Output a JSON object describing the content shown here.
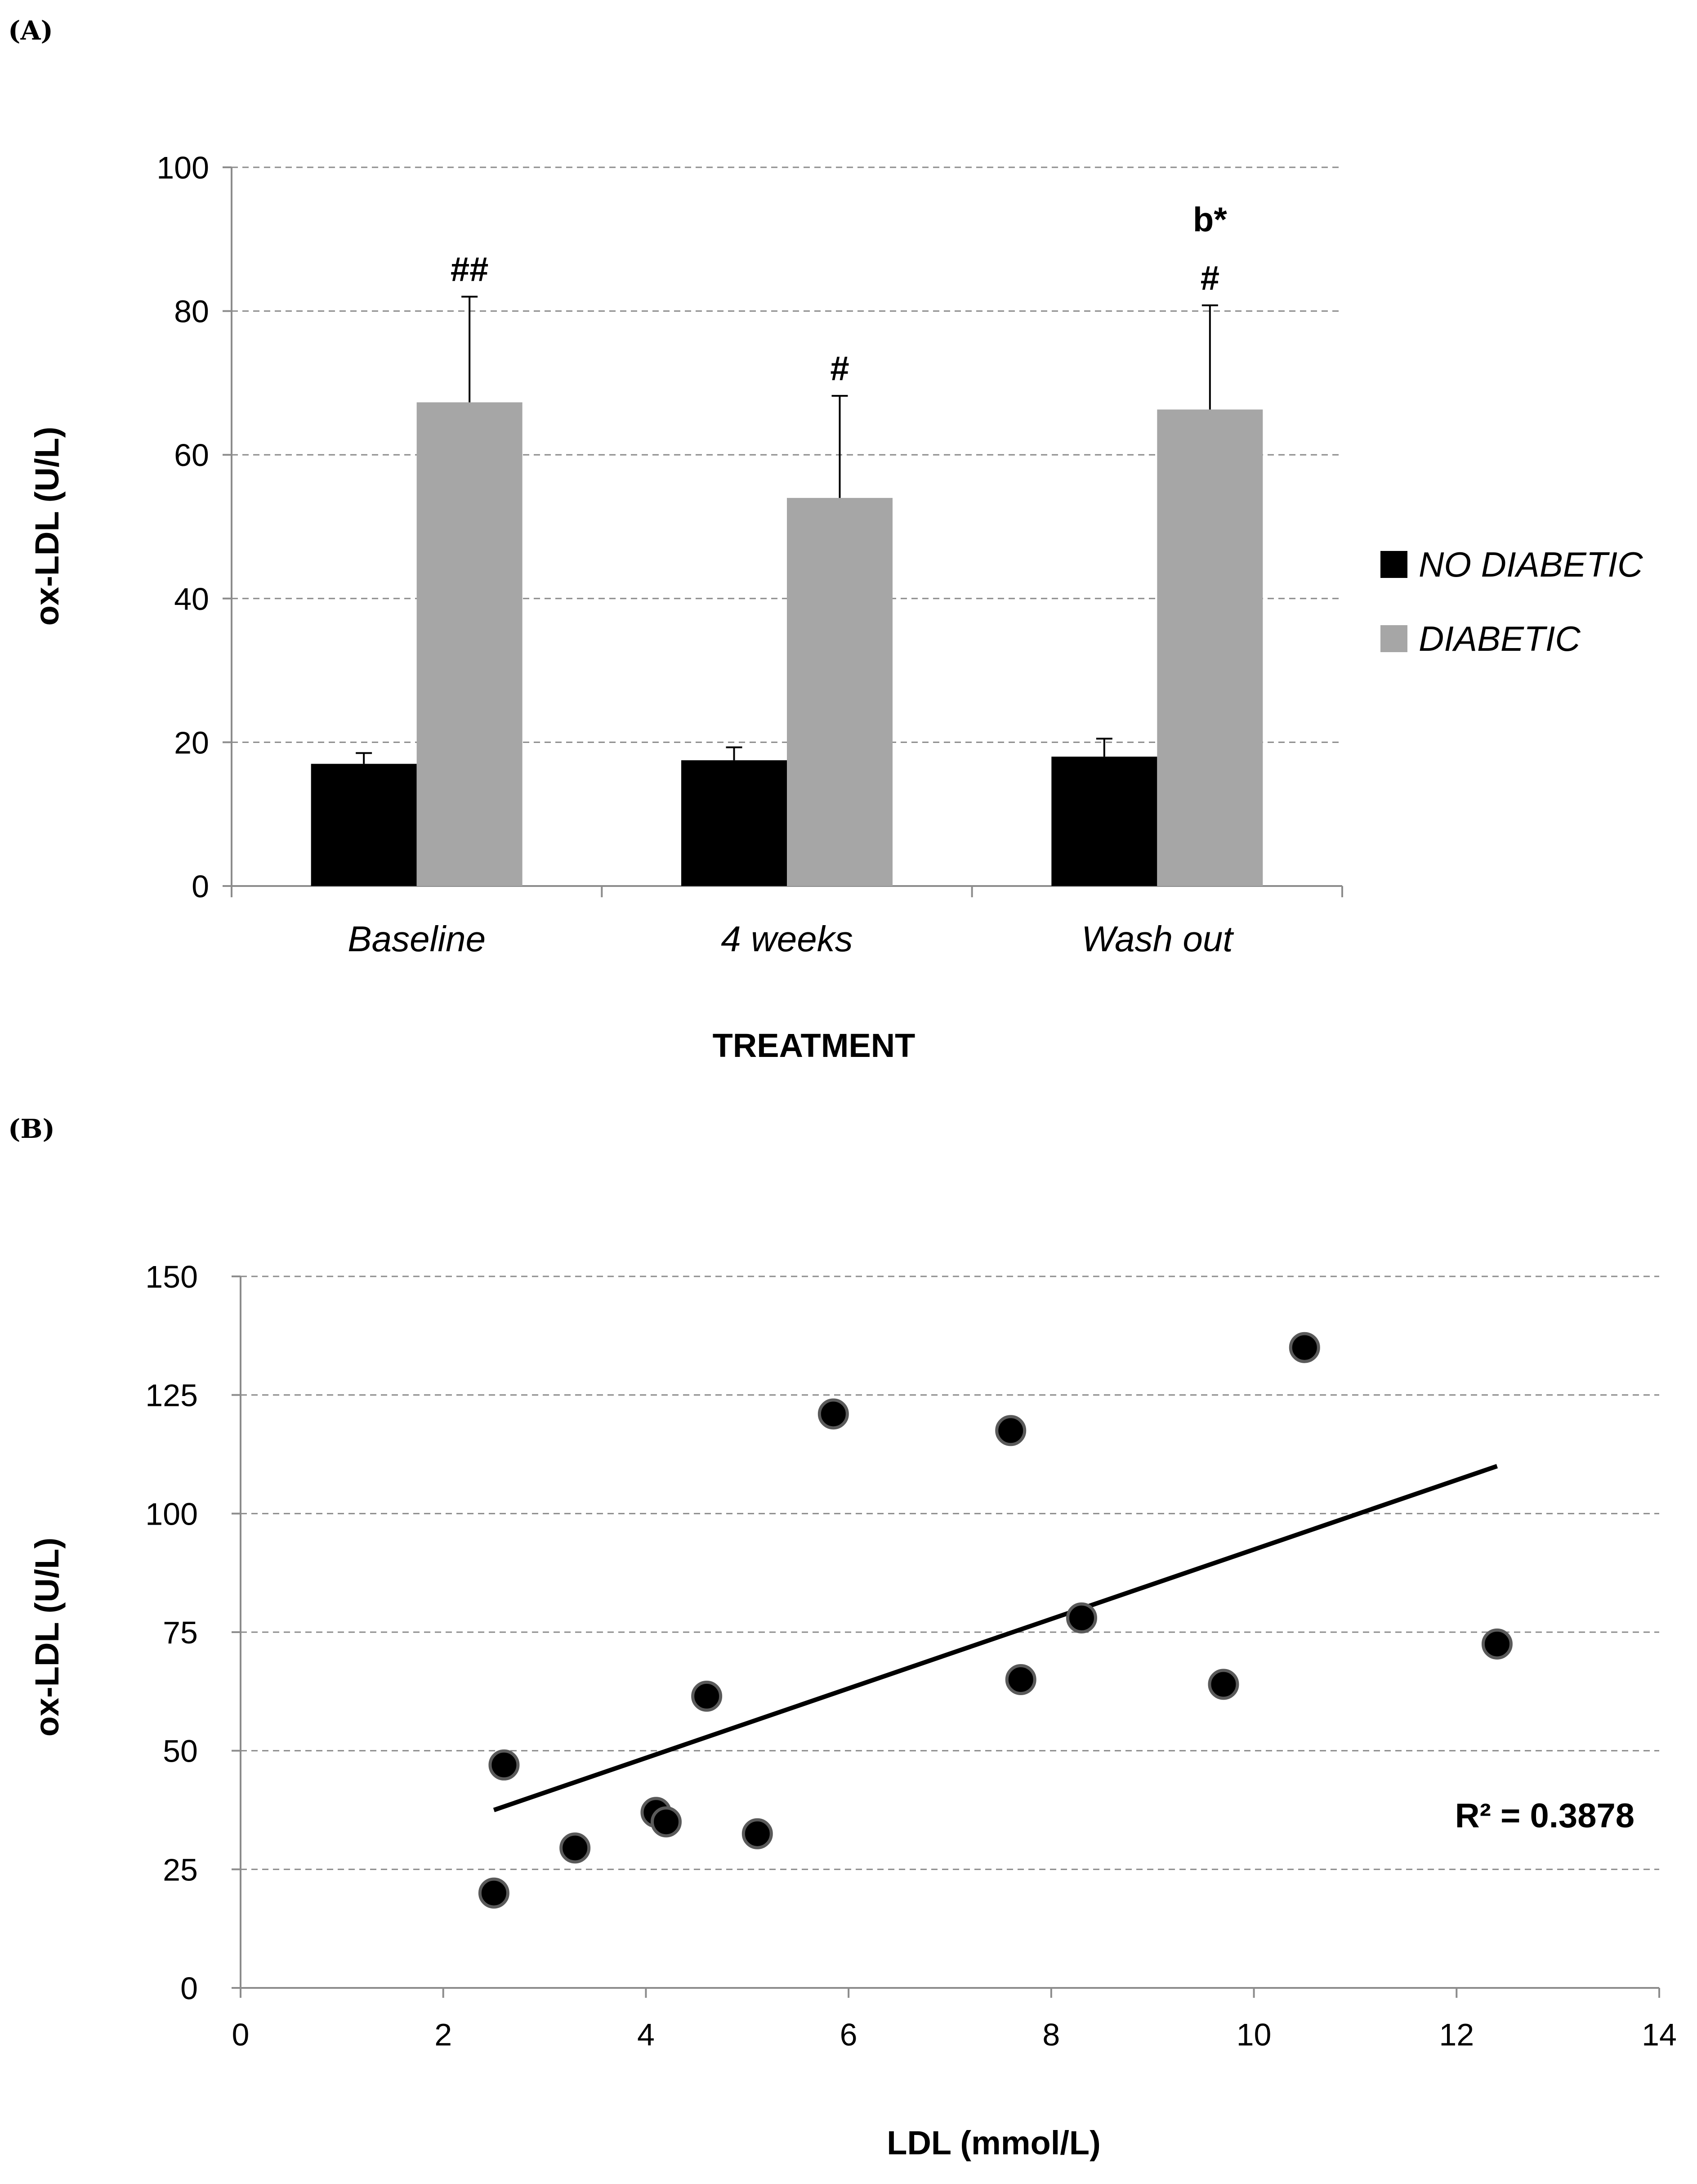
{
  "panel_a_label": "(A)",
  "panel_b_label": "(B)",
  "chart_data": [
    {
      "type": "bar",
      "title": "",
      "xlabel": "TREATMENT",
      "ylabel": "ox-LDL (U/L)",
      "ylim": [
        0,
        100
      ],
      "yticks": [
        "0",
        "20",
        "40",
        "60",
        "80",
        "100"
      ],
      "grid": true,
      "legend_position": "right",
      "categories": [
        "Baseline",
        "4 weeks",
        "Wash out"
      ],
      "series": [
        {
          "name": "NO DIABETIC",
          "color": "#000000",
          "values": [
            17,
            17.5,
            18
          ],
          "errors": [
            1.5,
            1.8,
            2.5
          ]
        },
        {
          "name": "DIABETIC",
          "color": "#a6a6a6",
          "values": [
            67.3,
            54,
            66.3
          ],
          "errors": [
            14.7,
            14.2,
            14.5
          ]
        }
      ],
      "annotations": [
        {
          "category": "Baseline",
          "text": "##"
        },
        {
          "category": "4 weeks",
          "text": "#"
        },
        {
          "category": "Wash out",
          "text": "#"
        },
        {
          "category": "Wash out",
          "text": "b*"
        }
      ]
    },
    {
      "type": "scatter",
      "title": "",
      "xlabel": "LDL (mmol/L)",
      "ylabel": "ox-LDL (U/L)",
      "xlim": [
        0,
        14
      ],
      "ylim": [
        0,
        150
      ],
      "xticks": [
        "0",
        "2",
        "4",
        "6",
        "8",
        "10",
        "12",
        "14"
      ],
      "yticks": [
        "0",
        "25",
        "50",
        "75",
        "100",
        "125",
        "150"
      ],
      "grid": true,
      "points": [
        {
          "x": 2.6,
          "y": 47
        },
        {
          "x": 2.5,
          "y": 20
        },
        {
          "x": 3.3,
          "y": 29.5
        },
        {
          "x": 4.1,
          "y": 37
        },
        {
          "x": 4.2,
          "y": 35
        },
        {
          "x": 4.6,
          "y": 61.5
        },
        {
          "x": 5.1,
          "y": 32.5
        },
        {
          "x": 5.85,
          "y": 121
        },
        {
          "x": 7.6,
          "y": 117.5
        },
        {
          "x": 7.7,
          "y": 65
        },
        {
          "x": 8.3,
          "y": 78
        },
        {
          "x": 9.7,
          "y": 64
        },
        {
          "x": 10.5,
          "y": 135
        },
        {
          "x": 12.4,
          "y": 72.5
        }
      ],
      "trendline": {
        "x": [
          2.5,
          12.4
        ],
        "y": [
          37.5,
          110
        ]
      },
      "r_squared_label": "R² = 0.3878"
    }
  ]
}
